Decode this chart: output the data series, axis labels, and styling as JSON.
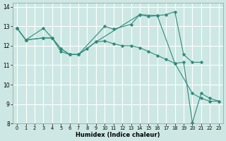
{
  "title": "",
  "xlabel": "Humidex (Indice chaleur)",
  "ylabel": "",
  "bg_color": "#cde8e4",
  "grid_color": "#ffffff",
  "line_color": "#2e8b7a",
  "xlim": [
    -0.5,
    23.5
  ],
  "ylim": [
    8,
    14.2
  ],
  "xticks": [
    0,
    1,
    2,
    3,
    4,
    5,
    6,
    7,
    8,
    9,
    10,
    11,
    12,
    13,
    14,
    15,
    16,
    17,
    18,
    19,
    20,
    21,
    22,
    23
  ],
  "yticks": [
    8,
    9,
    10,
    11,
    12,
    13,
    14
  ],
  "lines": [
    {
      "x": [
        0,
        1,
        3,
        4,
        5,
        6,
        7,
        10,
        11,
        13,
        14,
        15,
        16,
        17,
        18,
        19,
        20,
        21
      ],
      "y": [
        12.9,
        12.3,
        12.9,
        12.4,
        11.7,
        11.55,
        11.55,
        13.0,
        12.85,
        13.1,
        13.6,
        13.5,
        13.55,
        13.6,
        13.75,
        11.55,
        11.15,
        11.15
      ]
    },
    {
      "x": [
        0,
        1,
        3,
        4,
        5,
        6,
        7,
        8,
        9,
        10,
        11,
        12,
        13,
        14,
        15,
        16,
        17,
        18,
        20,
        21,
        22,
        23
      ],
      "y": [
        12.9,
        12.3,
        12.4,
        12.4,
        11.85,
        11.55,
        11.55,
        11.85,
        12.2,
        12.25,
        12.1,
        12.0,
        12.0,
        11.9,
        11.7,
        11.5,
        11.3,
        11.1,
        9.55,
        9.3,
        9.15,
        9.15
      ]
    },
    {
      "x": [
        0,
        1,
        3,
        4,
        5,
        6,
        7,
        9,
        14,
        16,
        18,
        19,
        20,
        21,
        22,
        23
      ],
      "y": [
        12.9,
        12.3,
        12.4,
        12.4,
        11.85,
        11.55,
        11.55,
        12.2,
        13.6,
        13.55,
        11.1,
        11.15,
        8.05,
        9.55,
        9.3,
        9.15
      ]
    }
  ]
}
